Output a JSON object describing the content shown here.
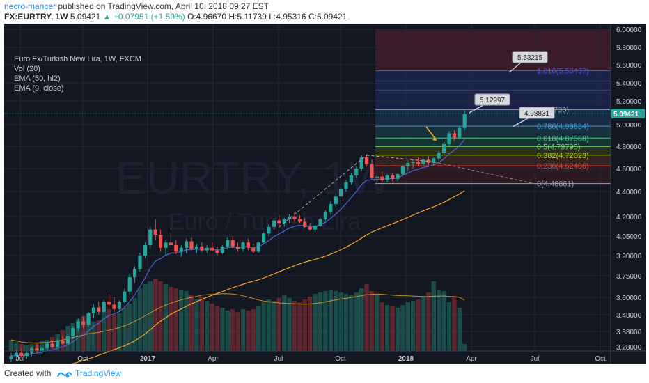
{
  "header": {
    "author": "necro-mancer",
    "published_text": "published on TradingView.com, April 10, 2018 09:27 EST",
    "symbol": "FX:EURTRY, 1W",
    "price": "5.09421",
    "change": "+0.07951 (+1.59%)",
    "ohlc_open": "O:4.96670",
    "ohlc_high": "H:5.11739",
    "ohlc_low": "L:4.95316",
    "ohlc_close": "C:5.09421"
  },
  "legend": {
    "title": "Euro Fx/Turkish New Lira, 1W, FXCM",
    "ind1": "Vol (20)",
    "ind2": "EMA (50, hl2)",
    "ind3": "EMA (9, close)"
  },
  "watermark": {
    "big": "EURTRY, 1W",
    "small": "Euro / Turkish Lira"
  },
  "footer": {
    "created_with": "Created with",
    "brand": "TradingView"
  },
  "colors": {
    "background": "#131722",
    "up": "#26a69a",
    "down": "#ef5350",
    "ema50": "#f5a623",
    "ema9": "#4a66d6",
    "grid": "#242a38",
    "axis_text": "#c8cbd2",
    "last_price_bg": "#26a69a"
  },
  "chart_data": {
    "type": "candlestick",
    "title": "Euro Fx/Turkish New Lira, 1W, FXCM",
    "x_ticks": [
      "Jul",
      "Oct",
      "2017",
      "Apr",
      "Jul",
      "Oct",
      "2018",
      "Apr",
      "Jul",
      "Oct"
    ],
    "y_ticks": [
      "6.00000",
      "5.80000",
      "5.60000",
      "5.40000",
      "5.20000",
      "5.00000",
      "4.80000",
      "4.60000",
      "4.40000",
      "4.20000",
      "4.05000",
      "3.90000",
      "3.75000",
      "3.60000",
      "3.48000",
      "3.38000",
      "3.28000"
    ],
    "last_price": "5.09421",
    "fib_levels": [
      {
        "label": "0(4.46861)",
        "value": 4.46861,
        "color": "#9aa0ab"
      },
      {
        "label": "0.236(4.62406)",
        "value": 4.62406,
        "color": "#e0443e"
      },
      {
        "label": "0.382(4.72023)",
        "value": 4.72023,
        "color": "#b5cc35"
      },
      {
        "label": "0.5(4.79795)",
        "value": 4.79795,
        "color": "#6fd36f"
      },
      {
        "label": "0.618(4.87568)",
        "value": 4.87568,
        "color": "#3ec28f"
      },
      {
        "label": "0.786(4.98634)",
        "value": 4.98634,
        "color": "#3a9ad9"
      },
      {
        "label": "2730)",
        "value": 5.1273,
        "color": "#9aa0ab"
      },
      {
        "label": "1.618(5.53437)",
        "value": 5.53437,
        "color": "#4f4fd6"
      }
    ],
    "callouts": [
      "5.53215",
      "5.12997",
      "4.98831"
    ],
    "candles": [
      [
        3.2,
        3.24,
        3.18,
        3.22
      ],
      [
        3.22,
        3.26,
        3.19,
        3.24
      ],
      [
        3.24,
        3.27,
        3.21,
        3.22
      ],
      [
        3.22,
        3.25,
        3.2,
        3.24
      ],
      [
        3.24,
        3.28,
        3.22,
        3.27
      ],
      [
        3.27,
        3.3,
        3.24,
        3.25
      ],
      [
        3.25,
        3.28,
        3.23,
        3.27
      ],
      [
        3.27,
        3.31,
        3.25,
        3.3
      ],
      [
        3.3,
        3.32,
        3.27,
        3.28
      ],
      [
        3.28,
        3.33,
        3.27,
        3.32
      ],
      [
        3.32,
        3.35,
        3.29,
        3.3
      ],
      [
        3.3,
        3.36,
        3.29,
        3.35
      ],
      [
        3.35,
        3.41,
        3.33,
        3.4
      ],
      [
        3.4,
        3.46,
        3.38,
        3.44
      ],
      [
        3.44,
        3.47,
        3.4,
        3.42
      ],
      [
        3.42,
        3.5,
        3.41,
        3.49
      ],
      [
        3.49,
        3.55,
        3.46,
        3.53
      ],
      [
        3.53,
        3.57,
        3.48,
        3.5
      ],
      [
        3.5,
        3.58,
        3.49,
        3.57
      ],
      [
        3.57,
        3.62,
        3.52,
        3.55
      ],
      [
        3.55,
        3.6,
        3.5,
        3.52
      ],
      [
        3.52,
        3.58,
        3.5,
        3.57
      ],
      [
        3.57,
        3.66,
        3.56,
        3.64
      ],
      [
        3.64,
        3.76,
        3.62,
        3.74
      ],
      [
        3.74,
        3.82,
        3.7,
        3.8
      ],
      [
        3.8,
        3.92,
        3.78,
        3.9
      ],
      [
        3.9,
        4.0,
        3.88,
        3.98
      ],
      [
        3.98,
        4.12,
        3.95,
        4.1
      ],
      [
        4.1,
        4.18,
        4.02,
        4.06
      ],
      [
        4.06,
        4.1,
        3.93,
        3.96
      ],
      [
        3.96,
        4.02,
        3.9,
        4.0
      ],
      [
        4.0,
        4.08,
        3.96,
        3.98
      ],
      [
        3.98,
        4.02,
        3.91,
        3.93
      ],
      [
        3.93,
        3.98,
        3.89,
        3.96
      ],
      [
        3.96,
        4.03,
        3.92,
        4.01
      ],
      [
        4.01,
        4.04,
        3.94,
        3.95
      ],
      [
        3.95,
        3.99,
        3.92,
        3.97
      ],
      [
        3.97,
        4.0,
        3.93,
        3.94
      ],
      [
        3.94,
        3.98,
        3.92,
        3.96
      ],
      [
        3.96,
        4.0,
        3.93,
        3.94
      ],
      [
        3.94,
        3.97,
        3.9,
        3.92
      ],
      [
        3.92,
        3.98,
        3.91,
        3.97
      ],
      [
        3.97,
        4.04,
        3.95,
        4.02
      ],
      [
        4.02,
        4.05,
        3.96,
        3.97
      ],
      [
        3.97,
        4.0,
        3.93,
        3.95
      ],
      [
        3.95,
        4.01,
        3.93,
        4.0
      ],
      [
        4.0,
        4.03,
        3.94,
        3.96
      ],
      [
        3.96,
        3.99,
        3.92,
        3.93
      ],
      [
        3.93,
        4.01,
        3.92,
        4.0
      ],
      [
        4.0,
        4.08,
        3.99,
        4.07
      ],
      [
        4.07,
        4.14,
        4.05,
        4.12
      ],
      [
        4.12,
        4.19,
        4.1,
        4.17
      ],
      [
        4.17,
        4.21,
        4.13,
        4.15
      ],
      [
        4.15,
        4.19,
        4.12,
        4.18
      ],
      [
        4.18,
        4.22,
        4.15,
        4.2
      ],
      [
        4.2,
        4.24,
        4.16,
        4.18
      ],
      [
        4.18,
        4.21,
        4.15,
        4.16
      ],
      [
        4.16,
        4.19,
        4.11,
        4.12
      ],
      [
        4.12,
        4.15,
        4.09,
        4.1
      ],
      [
        4.1,
        4.14,
        4.08,
        4.13
      ],
      [
        4.13,
        4.19,
        4.12,
        4.18
      ],
      [
        4.18,
        4.25,
        4.17,
        4.24
      ],
      [
        4.24,
        4.32,
        4.22,
        4.3
      ],
      [
        4.3,
        4.38,
        4.28,
        4.36
      ],
      [
        4.36,
        4.44,
        4.34,
        4.42
      ],
      [
        4.42,
        4.5,
        4.4,
        4.48
      ],
      [
        4.48,
        4.56,
        4.46,
        4.54
      ],
      [
        4.54,
        4.62,
        4.52,
        4.6
      ],
      [
        4.6,
        4.72,
        4.58,
        4.7
      ],
      [
        4.7,
        4.73,
        4.62,
        4.64
      ],
      [
        4.64,
        4.68,
        4.5,
        4.52
      ],
      [
        4.52,
        4.56,
        4.47,
        4.53
      ],
      [
        4.53,
        4.57,
        4.48,
        4.5
      ],
      [
        4.5,
        4.55,
        4.48,
        4.54
      ],
      [
        4.54,
        4.56,
        4.49,
        4.51
      ],
      [
        4.51,
        4.56,
        4.49,
        4.55
      ],
      [
        4.55,
        4.63,
        4.54,
        4.62
      ],
      [
        4.62,
        4.67,
        4.58,
        4.65
      ],
      [
        4.65,
        4.68,
        4.6,
        4.66
      ],
      [
        4.66,
        4.7,
        4.62,
        4.64
      ],
      [
        4.64,
        4.69,
        4.62,
        4.68
      ],
      [
        4.68,
        4.71,
        4.63,
        4.65
      ],
      [
        4.65,
        4.7,
        4.63,
        4.69
      ],
      [
        4.69,
        4.76,
        4.67,
        4.74
      ],
      [
        4.74,
        4.84,
        4.72,
        4.82
      ],
      [
        4.82,
        4.94,
        4.8,
        4.92
      ],
      [
        4.92,
        4.95,
        4.85,
        4.88
      ],
      [
        4.88,
        4.99,
        4.87,
        4.97
      ],
      [
        4.97,
        5.12,
        4.95,
        5.09
      ]
    ],
    "volumes": [
      16,
      13,
      10,
      9,
      10,
      12,
      14,
      16,
      20,
      24,
      30,
      36,
      40,
      46,
      50,
      48,
      42,
      44,
      56,
      60,
      52,
      54,
      62,
      68,
      76,
      90,
      96,
      100,
      104,
      100,
      96,
      92,
      90,
      88,
      86,
      80,
      74,
      78,
      72,
      68,
      64,
      62,
      58,
      60,
      56,
      60,
      58,
      60,
      64,
      70,
      74,
      72,
      76,
      80,
      76,
      72,
      70,
      74,
      78,
      82,
      84,
      86,
      88,
      86,
      84,
      82,
      80,
      84,
      90,
      96,
      86,
      80,
      70,
      66,
      64,
      62,
      66,
      70,
      72,
      74,
      78,
      84,
      100,
      88,
      86,
      70,
      78,
      62,
      10
    ]
  }
}
